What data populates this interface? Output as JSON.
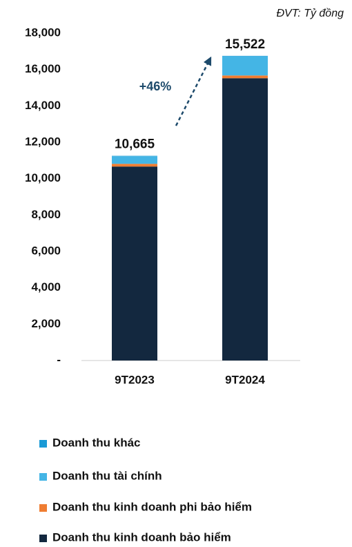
{
  "chart_data": {
    "type": "stacked_bar",
    "unit_note": "ĐVT: Tỷ đồng",
    "annotation": "+46%",
    "categories": [
      "9T2023",
      "9T2024"
    ],
    "series": [
      {
        "name": "Doanh thu kinh doanh bảo hiểm",
        "color": "#13283f",
        "values": [
          10665,
          15522
        ],
        "value_labels": [
          "10,665",
          "15,522"
        ]
      },
      {
        "name": "Doanh thu kinh doanh phi bảo hiểm",
        "color": "#ef7d32",
        "values": [
          150,
          150
        ]
      },
      {
        "name": "Doanh thu tài chính",
        "color": "#44b5e5",
        "values": [
          420,
          1060
        ]
      },
      {
        "name": "Doanh thu khác",
        "color": "#1a9ad6",
        "values": [
          20,
          20
        ]
      }
    ],
    "ylim": [
      0,
      18000
    ],
    "yticks": [
      {
        "value": 0,
        "label": "-"
      },
      {
        "value": 2000,
        "label": "2,000"
      },
      {
        "value": 4000,
        "label": "4,000"
      },
      {
        "value": 6000,
        "label": "6,000"
      },
      {
        "value": 8000,
        "label": "8,000"
      },
      {
        "value": 10000,
        "label": "10,000"
      },
      {
        "value": 12000,
        "label": "12,000"
      },
      {
        "value": 14000,
        "label": "14,000"
      },
      {
        "value": 16000,
        "label": "16,000"
      },
      {
        "value": 18000,
        "label": "18,000"
      }
    ],
    "grid": false
  }
}
